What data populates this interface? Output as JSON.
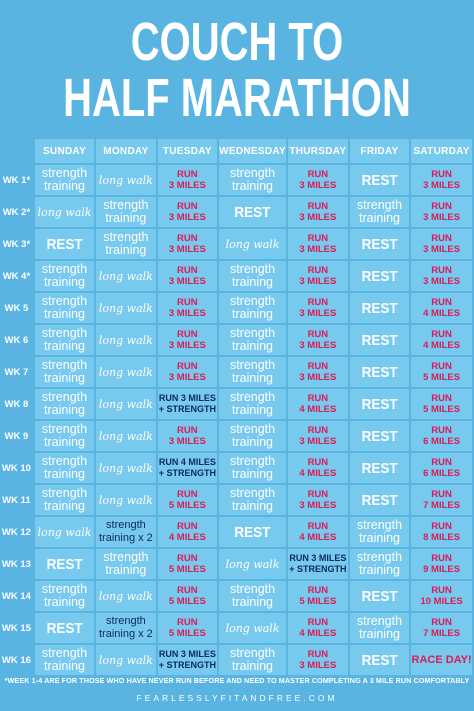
{
  "title": {
    "line1": "COUCH TO",
    "line2": "HALF MARATHON"
  },
  "days": [
    "SUNDAY",
    "MONDAY",
    "TUESDAY",
    "WEDNESDAY",
    "THURSDAY",
    "FRIDAY",
    "SATURDAY"
  ],
  "weeks": [
    {
      "label": "WK 1*",
      "cells": [
        {
          "type": "strength",
          "text": "strength\ntraining"
        },
        {
          "type": "walk",
          "text": "long walk"
        },
        {
          "type": "run",
          "text": "RUN\n3 MILES"
        },
        {
          "type": "strength",
          "text": "strength\ntraining"
        },
        {
          "type": "run",
          "text": "RUN\n3 MILES"
        },
        {
          "type": "rest",
          "text": "REST"
        },
        {
          "type": "run",
          "text": "RUN\n3 MILES"
        }
      ]
    },
    {
      "label": "WK 2*",
      "cells": [
        {
          "type": "walk",
          "text": "long walk"
        },
        {
          "type": "strength",
          "text": "strength\ntraining"
        },
        {
          "type": "run",
          "text": "RUN\n3 MILES"
        },
        {
          "type": "rest",
          "text": "REST"
        },
        {
          "type": "run",
          "text": "RUN\n3 MILES"
        },
        {
          "type": "strength",
          "text": "strength\ntraining"
        },
        {
          "type": "run",
          "text": "RUN\n3 MILES"
        }
      ]
    },
    {
      "label": "WK 3*",
      "cells": [
        {
          "type": "rest",
          "text": "REST"
        },
        {
          "type": "strength",
          "text": "strength\ntraining"
        },
        {
          "type": "run",
          "text": "RUN\n3 MILES"
        },
        {
          "type": "walk",
          "text": "long walk"
        },
        {
          "type": "run",
          "text": "RUN\n3 MILES"
        },
        {
          "type": "rest",
          "text": "REST"
        },
        {
          "type": "run",
          "text": "RUN\n3 MILES"
        }
      ]
    },
    {
      "label": "WK 4*",
      "cells": [
        {
          "type": "strength",
          "text": "strength\ntraining"
        },
        {
          "type": "walk",
          "text": "long walk"
        },
        {
          "type": "run",
          "text": "RUN\n3 MILES"
        },
        {
          "type": "strength",
          "text": "strength\ntraining"
        },
        {
          "type": "run",
          "text": "RUN\n3 MILES"
        },
        {
          "type": "rest",
          "text": "REST"
        },
        {
          "type": "run",
          "text": "RUN\n3 MILES"
        }
      ]
    },
    {
      "label": "WK 5",
      "cells": [
        {
          "type": "strength",
          "text": "strength\ntraining"
        },
        {
          "type": "walk",
          "text": "long walk"
        },
        {
          "type": "run",
          "text": "RUN\n3 MILES"
        },
        {
          "type": "strength",
          "text": "strength\ntraining"
        },
        {
          "type": "run",
          "text": "RUN\n3 MILES"
        },
        {
          "type": "rest",
          "text": "REST"
        },
        {
          "type": "run",
          "text": "RUN\n4 MILES"
        }
      ]
    },
    {
      "label": "WK 6",
      "cells": [
        {
          "type": "strength",
          "text": "strength\ntraining"
        },
        {
          "type": "walk",
          "text": "long walk"
        },
        {
          "type": "run",
          "text": "RUN\n3 MILES"
        },
        {
          "type": "strength",
          "text": "strength\ntraining"
        },
        {
          "type": "run",
          "text": "RUN\n3 MILES"
        },
        {
          "type": "rest",
          "text": "REST"
        },
        {
          "type": "run",
          "text": "RUN\n4 MILES"
        }
      ]
    },
    {
      "label": "WK 7",
      "cells": [
        {
          "type": "strength",
          "text": "strength\ntraining"
        },
        {
          "type": "walk",
          "text": "long walk"
        },
        {
          "type": "run",
          "text": "RUN\n3 MILES"
        },
        {
          "type": "strength",
          "text": "strength\ntraining"
        },
        {
          "type": "run",
          "text": "RUN\n3 MILES"
        },
        {
          "type": "rest",
          "text": "REST"
        },
        {
          "type": "run",
          "text": "RUN\n5 MILES"
        }
      ]
    },
    {
      "label": "WK 8",
      "cells": [
        {
          "type": "strength",
          "text": "strength\ntraining"
        },
        {
          "type": "walk",
          "text": "long walk"
        },
        {
          "type": "combo",
          "text": "RUN 3 MILES\n+ STRENGTH"
        },
        {
          "type": "strength",
          "text": "strength\ntraining"
        },
        {
          "type": "run",
          "text": "RUN\n4 MILES"
        },
        {
          "type": "rest",
          "text": "REST"
        },
        {
          "type": "run",
          "text": "RUN\n5 MILES"
        }
      ]
    },
    {
      "label": "WK 9",
      "cells": [
        {
          "type": "strength",
          "text": "strength\ntraining"
        },
        {
          "type": "walk",
          "text": "long walk"
        },
        {
          "type": "run",
          "text": "RUN\n3 MILES"
        },
        {
          "type": "strength",
          "text": "strength\ntraining"
        },
        {
          "type": "run",
          "text": "RUN\n3 MILES"
        },
        {
          "type": "rest",
          "text": "REST"
        },
        {
          "type": "run",
          "text": "RUN\n6 MILES"
        }
      ]
    },
    {
      "label": "WK 10",
      "cells": [
        {
          "type": "strength",
          "text": "strength\ntraining"
        },
        {
          "type": "walk",
          "text": "long walk"
        },
        {
          "type": "combo",
          "text": "RUN 4 MILES\n+ STRENGTH"
        },
        {
          "type": "strength",
          "text": "strength\ntraining"
        },
        {
          "type": "run",
          "text": "RUN\n4 MILES"
        },
        {
          "type": "rest",
          "text": "REST"
        },
        {
          "type": "run",
          "text": "RUN\n6 MILES"
        }
      ]
    },
    {
      "label": "WK 11",
      "cells": [
        {
          "type": "strength",
          "text": "strength\ntraining"
        },
        {
          "type": "walk",
          "text": "long walk"
        },
        {
          "type": "run",
          "text": "RUN\n5 MILES"
        },
        {
          "type": "strength",
          "text": "strength\ntraining"
        },
        {
          "type": "run",
          "text": "RUN\n3 MILES"
        },
        {
          "type": "rest",
          "text": "REST"
        },
        {
          "type": "run",
          "text": "RUN\n7 MILES"
        }
      ]
    },
    {
      "label": "WK 12",
      "cells": [
        {
          "type": "walk",
          "text": "long walk"
        },
        {
          "type": "strx2",
          "text": "strength\ntraining x 2"
        },
        {
          "type": "run",
          "text": "RUN\n4 MILES"
        },
        {
          "type": "rest",
          "text": "REST"
        },
        {
          "type": "run",
          "text": "RUN\n4 MILES"
        },
        {
          "type": "strength",
          "text": "strength\ntraining"
        },
        {
          "type": "run",
          "text": "RUN\n8 MILES"
        }
      ]
    },
    {
      "label": "WK 13",
      "cells": [
        {
          "type": "rest",
          "text": "REST"
        },
        {
          "type": "strength",
          "text": "strength\ntraining"
        },
        {
          "type": "run",
          "text": "RUN\n5 MILES"
        },
        {
          "type": "walk",
          "text": "long walk"
        },
        {
          "type": "combo",
          "text": "RUN 3 MILES\n+ STRENGTH"
        },
        {
          "type": "strength",
          "text": "strength\ntraining"
        },
        {
          "type": "run",
          "text": "RUN\n9 MILES"
        }
      ]
    },
    {
      "label": "WK 14",
      "cells": [
        {
          "type": "strength",
          "text": "strength\ntraining"
        },
        {
          "type": "walk",
          "text": "long walk"
        },
        {
          "type": "run",
          "text": "RUN\n5 MILES"
        },
        {
          "type": "strength",
          "text": "strength\ntraining"
        },
        {
          "type": "run",
          "text": "RUN\n5 MILES"
        },
        {
          "type": "rest",
          "text": "REST"
        },
        {
          "type": "run",
          "text": "RUN\n10 MILES"
        }
      ]
    },
    {
      "label": "WK 15",
      "cells": [
        {
          "type": "rest",
          "text": "REST"
        },
        {
          "type": "strx2",
          "text": "strength\ntraining x 2"
        },
        {
          "type": "run",
          "text": "RUN\n5 MILES"
        },
        {
          "type": "walk",
          "text": "long walk"
        },
        {
          "type": "run",
          "text": "RUN\n4 MILES"
        },
        {
          "type": "strength",
          "text": "strength\ntraining"
        },
        {
          "type": "run",
          "text": "RUN\n7 MILES"
        }
      ]
    },
    {
      "label": "WK 16",
      "cells": [
        {
          "type": "strength",
          "text": "strength\ntraining"
        },
        {
          "type": "walk",
          "text": "long walk"
        },
        {
          "type": "combo",
          "text": "RUN 3 MILES\n+ STRENGTH"
        },
        {
          "type": "strength",
          "text": "strength\ntraining"
        },
        {
          "type": "run",
          "text": "RUN\n3 MILES"
        },
        {
          "type": "rest",
          "text": "REST"
        },
        {
          "type": "race",
          "text": "RACE DAY!"
        }
      ]
    }
  ],
  "footnote": "*WEEK 1-4 ARE FOR THOSE WHO HAVE NEVER RUN BEFORE AND NEED TO MASTER COMPLETING A 3 MILE RUN COMFORTABLY",
  "website": "FEARLESSLYFITANDFREE.COM",
  "colors": {
    "background": "#5ab4e2",
    "cell": "#78c9ee",
    "run_text": "#d81d5a",
    "combo_text": "#0d2a5c"
  }
}
